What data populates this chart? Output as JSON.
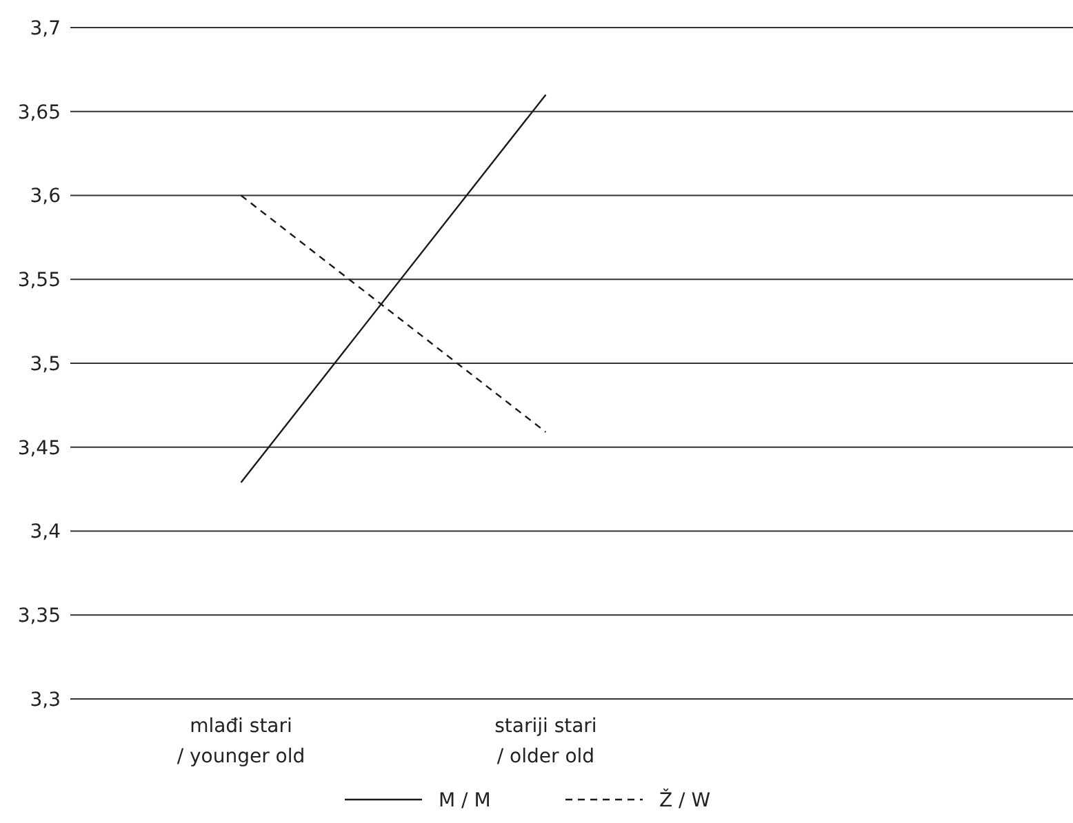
{
  "chart_data": {
    "type": "line",
    "categories": [
      "mlađi stari\n/ younger old",
      "stariji stari\n/ older old"
    ],
    "series": [
      {
        "name": "M / M",
        "color": "#1a1a1a",
        "values": [
          3.429,
          3.66
        ],
        "line_style": "solid"
      },
      {
        "name": "Ž / W",
        "color": "#1a1a1a",
        "values": [
          3.6,
          3.459
        ],
        "line_style": "dashed"
      }
    ],
    "ylim": [
      3.3,
      3.7
    ],
    "yticks": [
      {
        "value": 3.3,
        "label": "3,3"
      },
      {
        "value": 3.35,
        "label": "3,35"
      },
      {
        "value": 3.4,
        "label": "3,4"
      },
      {
        "value": 3.45,
        "label": "3,45"
      },
      {
        "value": 3.5,
        "label": "3,5"
      },
      {
        "value": 3.55,
        "label": "3,55"
      },
      {
        "value": 3.6,
        "label": "3,6"
      },
      {
        "value": 3.65,
        "label": "3,65"
      },
      {
        "value": 3.7,
        "label": "3,7"
      }
    ],
    "grid": "y",
    "legend": "bottom"
  }
}
